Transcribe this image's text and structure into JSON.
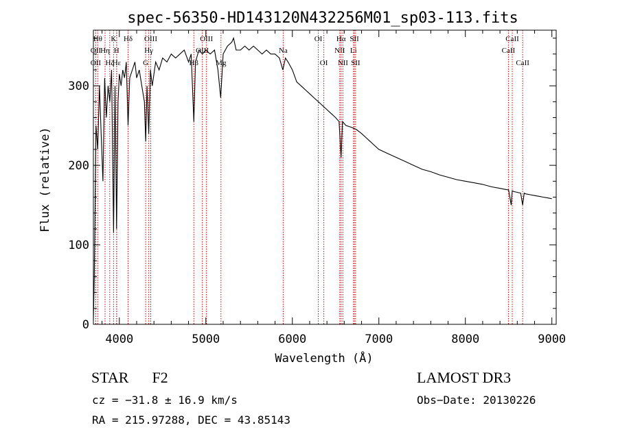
{
  "chart_data": {
    "type": "line",
    "title": "spec-56350-HD143120N432256M01_sp03-113.fits",
    "xlabel": "Wavelength (Å)",
    "ylabel": "Flux (relative)",
    "xlim": [
      3700,
      9050
    ],
    "ylim": [
      0,
      370
    ],
    "xticks": [
      4000,
      5000,
      6000,
      7000,
      8000,
      9000
    ],
    "yticks": [
      0,
      100,
      200,
      300
    ],
    "grid": false,
    "series": [
      {
        "name": "flux",
        "x": [
          3700,
          3710,
          3730,
          3750,
          3770,
          3790,
          3810,
          3830,
          3850,
          3870,
          3890,
          3910,
          3933,
          3950,
          3968,
          3985,
          4000,
          4020,
          4040,
          4060,
          4080,
          4101,
          4120,
          4150,
          4180,
          4200,
          4230,
          4260,
          4290,
          4305,
          4320,
          4340,
          4360,
          4380,
          4420,
          4460,
          4500,
          4550,
          4600,
          4650,
          4700,
          4750,
          4800,
          4830,
          4861,
          4880,
          4920,
          4960,
          5000,
          5050,
          5100,
          5140,
          5172,
          5200,
          5250,
          5300,
          5320,
          5350,
          5400,
          5450,
          5500,
          5550,
          5600,
          5650,
          5700,
          5750,
          5800,
          5850,
          5890,
          5920,
          5950,
          6000,
          6050,
          6100,
          6150,
          6200,
          6250,
          6300,
          6350,
          6400,
          6450,
          6500,
          6540,
          6563,
          6580,
          6620,
          6680,
          6740,
          6800,
          6850,
          6900,
          6950,
          7000,
          7100,
          7200,
          7300,
          7400,
          7500,
          7600,
          7700,
          7800,
          7900,
          8000,
          8100,
          8200,
          8300,
          8400,
          8450,
          8500,
          8530,
          8542,
          8560,
          8600,
          8640,
          8662,
          8680,
          8700,
          8750,
          8800,
          8850,
          8900,
          8950,
          9000
        ],
        "values": [
          5,
          60,
          250,
          220,
          300,
          240,
          180,
          310,
          260,
          300,
          280,
          320,
          115,
          300,
          120,
          280,
          315,
          300,
          320,
          310,
          330,
          250,
          310,
          320,
          330,
          310,
          320,
          300,
          280,
          230,
          300,
          240,
          320,
          300,
          330,
          320,
          335,
          330,
          340,
          335,
          340,
          345,
          330,
          340,
          255,
          330,
          345,
          340,
          345,
          340,
          345,
          320,
          285,
          340,
          350,
          355,
          360,
          345,
          345,
          350,
          345,
          350,
          345,
          340,
          345,
          340,
          340,
          335,
          320,
          335,
          330,
          320,
          305,
          300,
          295,
          290,
          285,
          280,
          275,
          270,
          265,
          260,
          255,
          210,
          255,
          250,
          248,
          245,
          240,
          235,
          230,
          225,
          220,
          215,
          210,
          205,
          200,
          195,
          192,
          188,
          185,
          182,
          180,
          178,
          176,
          173,
          171,
          170,
          169,
          150,
          168,
          167,
          166,
          165,
          150,
          165,
          164,
          163,
          162,
          161,
          160,
          159,
          158
        ]
      }
    ],
    "line_markers": [
      {
        "wavelength": 3750,
        "label": "Hθ",
        "row": 1
      },
      {
        "wavelength": 3727,
        "label": "OII",
        "row": 2
      },
      {
        "wavelength": 3727,
        "label": "OII",
        "row": 3
      },
      {
        "wavelength": 3835,
        "label": "Hη",
        "row": 2
      },
      {
        "wavelength": 3889,
        "label": "Hζ",
        "row": 3
      },
      {
        "wavelength": 3933,
        "label": "K",
        "row": 1
      },
      {
        "wavelength": 3968,
        "label": "H",
        "row": 2
      },
      {
        "wavelength": 3970,
        "label": "Hε",
        "row": 3
      },
      {
        "wavelength": 4101,
        "label": "Hδ",
        "row": 1
      },
      {
        "wavelength": 4304,
        "label": "G",
        "row": 3
      },
      {
        "wavelength": 4340,
        "label": "Hγ",
        "row": 2
      },
      {
        "wavelength": 4363,
        "label": "OIII",
        "row": 1
      },
      {
        "wavelength": 4861,
        "label": "Hβ",
        "row": 3
      },
      {
        "wavelength": 4959,
        "label": "OIII",
        "row": 2
      },
      {
        "wavelength": 5007,
        "label": "OIII",
        "row": 1
      },
      {
        "wavelength": 5175,
        "label": "Mg",
        "row": 3
      },
      {
        "wavelength": 5894,
        "label": "Na",
        "row": 2
      },
      {
        "wavelength": 6300,
        "label": "OI",
        "row": 1
      },
      {
        "wavelength": 6364,
        "label": "OI",
        "row": 3
      },
      {
        "wavelength": 6548,
        "label": "NII",
        "row": 2
      },
      {
        "wavelength": 6563,
        "label": "Hα",
        "row": 1
      },
      {
        "wavelength": 6584,
        "label": "NII",
        "row": 3
      },
      {
        "wavelength": 6707,
        "label": "Li",
        "row": 2
      },
      {
        "wavelength": 6717,
        "label": "SII",
        "row": 1
      },
      {
        "wavelength": 6731,
        "label": "SII",
        "row": 3
      },
      {
        "wavelength": 8498,
        "label": "CaII",
        "row": 2
      },
      {
        "wavelength": 8542,
        "label": "CaII",
        "row": 1
      },
      {
        "wavelength": 8662,
        "label": "CaII",
        "row": 3
      }
    ]
  },
  "info": {
    "class_label": "STAR",
    "subclass": "F2",
    "cz": "cz = −31.8 ± 16.9 km/s",
    "coords": "RA = 215.97288, DEC =  43.85143",
    "survey": "LAMOST DR3",
    "obs_date": "Obs−Date: 20130226"
  },
  "colors": {
    "line_marker": "#cc0000",
    "spectrum": "#000000"
  }
}
